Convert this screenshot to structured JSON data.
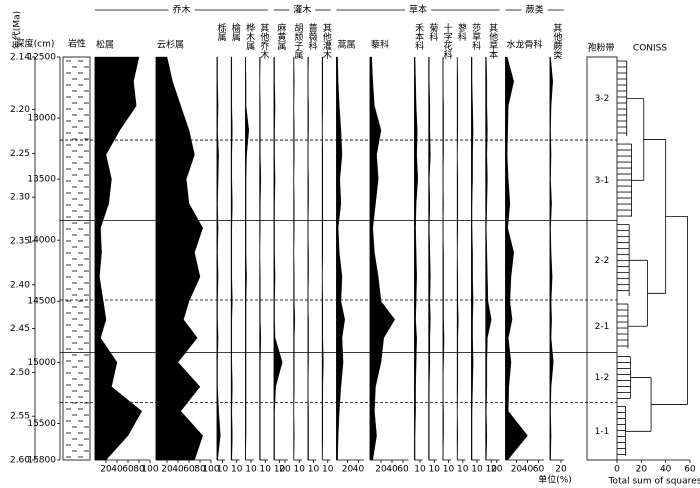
{
  "chart_data": {
    "type": "pollen",
    "color": "#000000",
    "age_label": "年代(Ma)",
    "depth_label": "深度(cm)",
    "lithology_label": "岩性",
    "zone_label": "孢粉带",
    "unit_label": "单位(%)",
    "ylim": [
      2.14,
      2.6
    ],
    "yticks": [
      2.14,
      {
        "value": 2.2,
        "label": "2.20"
      },
      2.25,
      {
        "value": 2.3,
        "label": "2.30"
      },
      2.35,
      {
        "value": 2.4,
        "label": "2.40"
      },
      2.45,
      {
        "value": 2.5,
        "label": "2.50"
      },
      2.55,
      {
        "value": 2.6,
        "label": "2.60"
      }
    ],
    "depth_lim": [
      12500,
      15800
    ],
    "depth_ticks": [
      12500,
      13000,
      13500,
      14000,
      14500,
      15000,
      15500,
      15800
    ],
    "depths": [
      12500,
      12700,
      12900,
      13100,
      13300,
      13500,
      13700,
      13900,
      14100,
      14300,
      14500,
      14650,
      14800,
      15000,
      15200,
      15400,
      15600,
      15800
    ],
    "groups": [
      {
        "name": "乔木",
        "series": [
          {
            "name": "松属",
            "xlim": [
              0,
              100
            ],
            "xticks": [
              20,
              40,
              60,
              80,
              100
            ],
            "values": [
              80,
              70,
              75,
              45,
              20,
              30,
              25,
              10,
              12,
              8,
              15,
              20,
              10,
              40,
              30,
              85,
              60,
              20
            ]
          },
          {
            "name": "云杉属",
            "xlim": [
              0,
              100
            ],
            "xticks": [
              20,
              40,
              60,
              80,
              100
            ],
            "values": [
              20,
              30,
              45,
              60,
              70,
              55,
              60,
              85,
              70,
              80,
              60,
              50,
              75,
              40,
              80,
              45,
              85,
              70
            ]
          },
          {
            "name": "栎属",
            "xlim": [
              0,
              15
            ],
            "xticks": [
              10
            ],
            "values": [
              1,
              1,
              2,
              1,
              3,
              2,
              1,
              2,
              1,
              2,
              1,
              1,
              2,
              1,
              1,
              3,
              6,
              1
            ]
          },
          {
            "name": "榆属",
            "xlim": [
              0,
              15
            ],
            "xticks": [
              10
            ],
            "values": [
              1,
              1,
              1,
              2,
              1,
              1,
              2,
              1,
              1,
              1,
              2,
              1,
              1,
              1,
              2,
              1,
              2,
              1
            ]
          },
          {
            "name": "桦木属",
            "xlim": [
              0,
              15
            ],
            "xticks": [
              10
            ],
            "values": [
              0,
              1,
              1,
              6,
              2,
              1,
              1,
              1,
              1,
              2,
              1,
              1,
              1,
              1,
              1,
              1,
              1,
              0
            ]
          },
          {
            "name": "其他乔木",
            "xlim": [
              0,
              15
            ],
            "xticks": [
              10
            ],
            "values": [
              1,
              0,
              1,
              1,
              1,
              2,
              1,
              1,
              0,
              1,
              1,
              1,
              2,
              1,
              1,
              1,
              1,
              1
            ]
          }
        ]
      },
      {
        "name": "灌木",
        "series": [
          {
            "name": "麻黄属",
            "xlim": [
              0,
              25
            ],
            "xticks": [
              10,
              20
            ],
            "values": [
              1,
              1,
              2,
              1,
              1,
              2,
              1,
              1,
              1,
              2,
              1,
              1,
              2,
              15,
              3,
              1,
              1,
              1
            ]
          },
          {
            "name": "胡颓子属",
            "xlim": [
              0,
              15
            ],
            "xticks": [
              10
            ],
            "values": [
              0,
              1,
              0,
              1,
              1,
              0,
              1,
              1,
              0,
              1,
              1,
              2,
              1,
              1,
              1,
              0,
              1,
              0
            ]
          },
          {
            "name": "蔷薇科",
            "xlim": [
              0,
              15
            ],
            "xticks": [
              10
            ],
            "values": [
              1,
              0,
              1,
              1,
              0,
              1,
              1,
              0,
              1,
              1,
              0,
              1,
              1,
              1,
              0,
              1,
              1,
              1
            ]
          },
          {
            "name": "其他灌木",
            "xlim": [
              0,
              15
            ],
            "xticks": [
              10
            ],
            "values": [
              1,
              1,
              1,
              0,
              1,
              1,
              1,
              1,
              1,
              0,
              1,
              1,
              1,
              2,
              1,
              1,
              1,
              0
            ]
          }
        ]
      },
      {
        "name": "草本",
        "series": [
          {
            "name": "蒿属",
            "xlim": [
              0,
              50
            ],
            "xticks": [
              20,
              40
            ],
            "values": [
              2,
              3,
              5,
              8,
              10,
              6,
              8,
              3,
              5,
              10,
              8,
              15,
              10,
              12,
              8,
              5,
              3,
              2
            ]
          },
          {
            "name": "藜科",
            "xlim": [
              0,
              70
            ],
            "xticks": [
              20,
              40,
              60
            ],
            "values": [
              3,
              5,
              8,
              20,
              12,
              15,
              10,
              5,
              8,
              15,
              20,
              45,
              25,
              20,
              10,
              8,
              12,
              5
            ]
          },
          {
            "name": "禾本科",
            "xlim": [
              0,
              15
            ],
            "xticks": [
              10
            ],
            "values": [
              1,
              2,
              3,
              5,
              4,
              6,
              3,
              2,
              3,
              4,
              3,
              2,
              4,
              3,
              2,
              2,
              1,
              1
            ]
          },
          {
            "name": "菊科",
            "xlim": [
              0,
              15
            ],
            "xticks": [
              10
            ],
            "values": [
              1,
              1,
              2,
              2,
              3,
              1,
              2,
              1,
              2,
              3,
              2,
              3,
              2,
              2,
              1,
              1,
              1,
              1
            ]
          },
          {
            "name": "十字花科",
            "xlim": [
              0,
              15
            ],
            "xticks": [
              10
            ],
            "values": [
              0,
              0,
              1,
              1,
              1,
              0,
              1,
              0,
              1,
              1,
              1,
              1,
              2,
              1,
              0,
              1,
              1,
              0
            ]
          },
          {
            "name": "蓼科",
            "xlim": [
              0,
              15
            ],
            "xticks": [
              10
            ],
            "values": [
              0,
              1,
              1,
              1,
              0,
              1,
              1,
              1,
              0,
              1,
              1,
              2,
              1,
              1,
              1,
              0,
              1,
              0
            ]
          },
          {
            "name": "莎草科",
            "xlim": [
              0,
              15
            ],
            "xticks": [
              10
            ],
            "values": [
              1,
              1,
              2,
              3,
              2,
              2,
              1,
              1,
              2,
              2,
              3,
              2,
              2,
              3,
              2,
              1,
              1,
              1
            ]
          },
          {
            "name": "其他草本",
            "xlim": [
              0,
              25
            ],
            "xticks": [
              10,
              20
            ],
            "values": [
              1,
              2,
              2,
              3,
              2,
              3,
              2,
              1,
              2,
              3,
              4,
              10,
              3,
              2,
              2,
              1,
              2,
              1
            ]
          }
        ]
      },
      {
        "name": "蕨类",
        "series": [
          {
            "name": "水龙骨科",
            "xlim": [
              0,
              70
            ],
            "xticks": [
              20,
              40,
              60
            ],
            "values": [
              3,
              15,
              5,
              4,
              3,
              5,
              8,
              4,
              15,
              10,
              8,
              12,
              5,
              10,
              6,
              5,
              40,
              4
            ]
          },
          {
            "name": "其他蕨类",
            "xlim": [
              0,
              25
            ],
            "xticks": [
              20
            ],
            "values": [
              1,
              5,
              2,
              1,
              2,
              1,
              3,
              1,
              2,
              4,
              2,
              3,
              2,
              6,
              2,
              1,
              2,
              1
            ]
          }
        ]
      }
    ],
    "zones": [
      "3-2",
      "3-1",
      "2-2",
      "2-1",
      "1-2",
      "1-1"
    ],
    "boundaries": [
      {
        "depth": 13180,
        "style": "dashed"
      },
      {
        "depth": 13840,
        "style": "solid"
      },
      {
        "depth": 14490,
        "style": "dashed"
      },
      {
        "depth": 14920,
        "style": "solid"
      },
      {
        "depth": 15330,
        "style": "dashed"
      }
    ],
    "coniss": {
      "title": "CONISS",
      "xlabel": "Total sum of squares",
      "xlim": [
        0,
        60
      ],
      "xticks": [
        0,
        20,
        40,
        60
      ],
      "zone_ss": [
        8,
        12,
        10,
        9,
        11,
        7
      ],
      "pair_ss": [
        22,
        25,
        28
      ],
      "top_ss": [
        40,
        58
      ]
    }
  }
}
